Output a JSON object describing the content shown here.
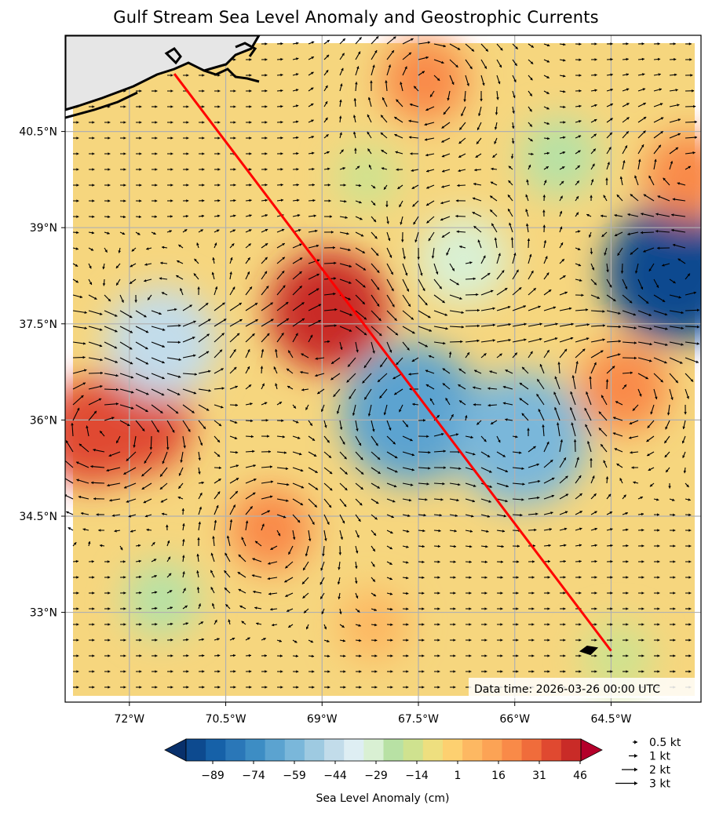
{
  "title": "Gulf Stream Sea Level Anomaly and Geostrophic Currents",
  "timestamp": "Data time: 2026-03-26 00:00 UTC",
  "colorbar": {
    "label": "Sea Level Anomaly (cm)",
    "ticks": [
      "−89",
      "−74",
      "−59",
      "−44",
      "−29",
      "−14",
      "1",
      "16",
      "31",
      "46"
    ],
    "colors": [
      "#08306b",
      "#0d4a8f",
      "#1661a8",
      "#2a77b8",
      "#3d8dc4",
      "#5ba3d0",
      "#7ab7da",
      "#9ecae1",
      "#c2dcea",
      "#deeef3",
      "#d9f0d3",
      "#b8e1a4",
      "#cfe28f",
      "#eedf7f",
      "#fdd070",
      "#fdb862",
      "#fca355",
      "#f98a48",
      "#f06c3b",
      "#e04930",
      "#c92b27",
      "#b4002a"
    ]
  },
  "vector_legend": [
    "0.5 kt",
    "1 kt",
    "2 kt",
    "3 kt"
  ],
  "axes": {
    "x_ticks": [
      "72°W",
      "70.5°W",
      "69°W",
      "67.5°W",
      "66°W",
      "64.5°W"
    ],
    "y_ticks": [
      "40.5°N",
      "39°N",
      "37.5°N",
      "36°N",
      "34.5°N",
      "33°N"
    ],
    "lon_range": [
      -73.0,
      -63.1
    ],
    "lat_range": [
      31.6,
      42.0
    ]
  },
  "track": {
    "start": [
      -71.3,
      41.4
    ],
    "end": [
      -64.5,
      32.4
    ],
    "color": "#ff0000"
  },
  "features": [
    {
      "name": "gulf-stream-warm-core",
      "lon": -68.9,
      "lat": 37.7,
      "anomaly": 46
    },
    {
      "name": "southwest-warm-eddy",
      "lon": -71.9,
      "lat": 36.0,
      "anomaly": 40
    },
    {
      "name": "west-warm-patch",
      "lon": -72.6,
      "lat": 35.8,
      "anomaly": 36
    },
    {
      "name": "east-warm-eddy",
      "lon": -64.3,
      "lat": 36.5,
      "anomaly": 25
    },
    {
      "name": "cold-eddy-near-67w",
      "lon": -67.6,
      "lat": 36.1,
      "anomaly": -60
    },
    {
      "name": "cold-eddy-near-66w",
      "lon": -65.9,
      "lat": 35.7,
      "anomaly": -55
    },
    {
      "name": "northeast-cold-eddy",
      "lon": -63.5,
      "lat": 38.3,
      "anomaly": -89
    },
    {
      "name": "west-cold-eddy",
      "lon": -71.5,
      "lat": 37.2,
      "anomaly": -40
    },
    {
      "name": "north-cold-band",
      "lon": -66.8,
      "lat": 38.5,
      "anomaly": -25
    },
    {
      "name": "south-cold-eddy",
      "lon": -71.5,
      "lat": 33.2,
      "anomaly": -15
    },
    {
      "name": "southeast-cold-patch",
      "lon": -64.4,
      "lat": 32.3,
      "anomaly": -12
    },
    {
      "name": "north-warm-patch",
      "lon": -67.4,
      "lat": 41.3,
      "anomaly": 22
    },
    {
      "name": "northeast-warm-patch",
      "lon": -63.3,
      "lat": 39.8,
      "anomaly": 24
    },
    {
      "name": "south-warm-patch",
      "lon": -69.8,
      "lat": 34.3,
      "anomaly": 20
    },
    {
      "name": "south-central-warm",
      "lon": -68.2,
      "lat": 32.8,
      "anomaly": 12
    },
    {
      "name": "north-central-cool",
      "lon": -65.3,
      "lat": 40.1,
      "anomaly": -18
    },
    {
      "name": "north-central-green",
      "lon": -68.3,
      "lat": 39.8,
      "anomaly": -8
    }
  ]
}
